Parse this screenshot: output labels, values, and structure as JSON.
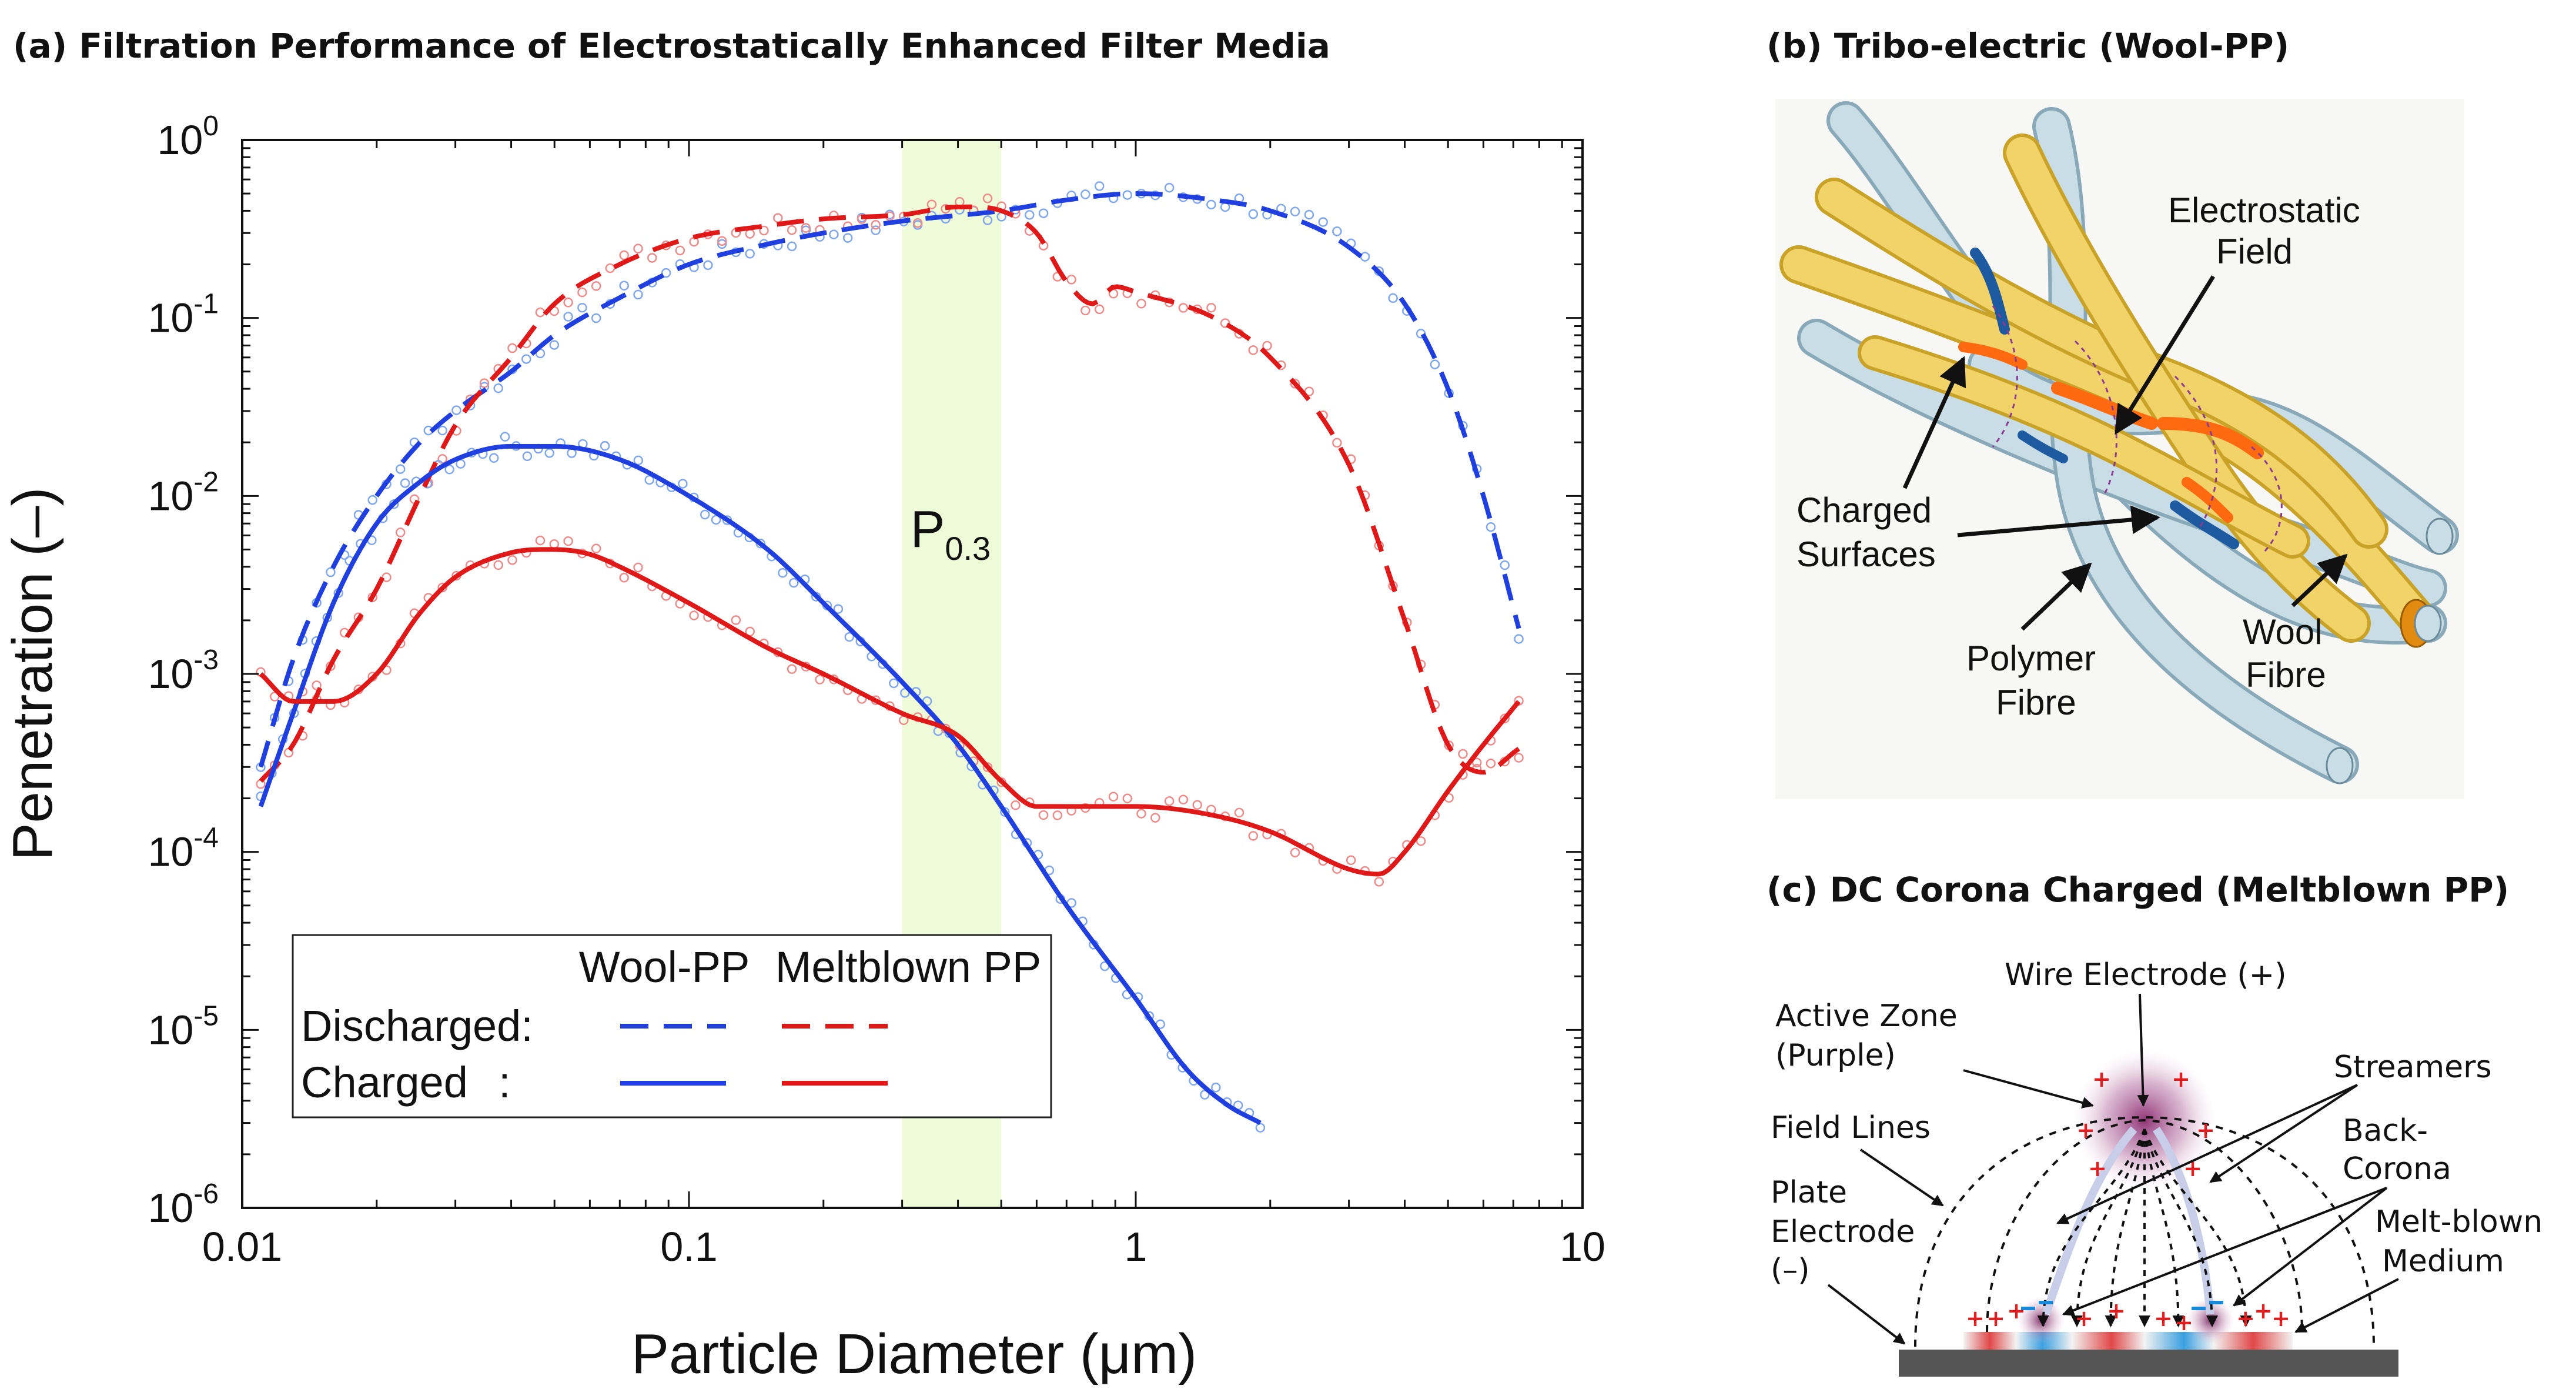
{
  "panels": {
    "a_title": "(a) Filtration Performance of Electrostatically Enhanced Filter Media",
    "b_title": "(b) Tribo-electric (Wool-PP)",
    "c_title": "(c) DC Corona Charged (Meltblown PP)"
  },
  "chart_data": {
    "type": "line",
    "title": "(a) Filtration Performance of Electrostatically Enhanced Filter Media",
    "xlabel": "Particle Diameter (μm)",
    "ylabel": "Penetration (–)",
    "xscale": "log",
    "yscale": "log",
    "xlim": [
      0.01,
      10
    ],
    "ylim": [
      1e-06,
      1
    ],
    "xticks": [
      "0.01",
      "0.1",
      "1",
      "10"
    ],
    "yticks": [
      {
        "base": "10",
        "exp": "-6"
      },
      {
        "base": "10",
        "exp": "-5"
      },
      {
        "base": "10",
        "exp": "-4"
      },
      {
        "base": "10",
        "exp": "-3"
      },
      {
        "base": "10",
        "exp": "-2"
      },
      {
        "base": "10",
        "exp": "-1"
      },
      {
        "base": "10",
        "exp": "0"
      }
    ],
    "band": {
      "x_from": 0.3,
      "x_to": 0.5,
      "label_main": "P",
      "label_sub": "0.3",
      "color": "#eefad8"
    },
    "legend": {
      "position": "bottom-left",
      "col_headers": [
        "Wool-PP",
        "Meltblown PP"
      ],
      "row_discharged": "Discharged:",
      "row_charged": "Charged",
      "row_charged_colon": ":"
    },
    "series": [
      {
        "key": "wool_discharged",
        "color": "#1f3fe0",
        "dash": true,
        "x": [
          0.011,
          0.013,
          0.016,
          0.02,
          0.025,
          0.03,
          0.04,
          0.05,
          0.07,
          0.1,
          0.15,
          0.2,
          0.3,
          0.5,
          0.7,
          1.0,
          1.5,
          2.0,
          3.0,
          4.0,
          5.0,
          6.0,
          7.2
        ],
        "y": [
          0.0003,
          0.0012,
          0.004,
          0.01,
          0.02,
          0.03,
          0.05,
          0.08,
          0.13,
          0.2,
          0.26,
          0.3,
          0.35,
          0.4,
          0.46,
          0.5,
          0.46,
          0.4,
          0.25,
          0.12,
          0.04,
          0.01,
          0.0018
        ]
      },
      {
        "key": "meltblown_discharged",
        "color": "#e01818",
        "dash": true,
        "x": [
          0.011,
          0.013,
          0.016,
          0.02,
          0.025,
          0.03,
          0.04,
          0.05,
          0.07,
          0.1,
          0.15,
          0.2,
          0.3,
          0.4,
          0.5,
          0.6,
          0.7,
          0.8,
          0.9,
          1.0,
          1.5,
          2.0,
          3.0,
          4.0,
          5.0,
          6.0,
          7.2
        ],
        "y": [
          0.00025,
          0.0004,
          0.0012,
          0.003,
          0.01,
          0.025,
          0.06,
          0.12,
          0.2,
          0.28,
          0.33,
          0.36,
          0.38,
          0.42,
          0.4,
          0.3,
          0.16,
          0.12,
          0.15,
          0.14,
          0.1,
          0.06,
          0.015,
          0.002,
          0.0004,
          0.00028,
          0.00038
        ]
      },
      {
        "key": "wool_charged",
        "color": "#1f3fe0",
        "dash": false,
        "x": [
          0.011,
          0.013,
          0.016,
          0.02,
          0.025,
          0.03,
          0.04,
          0.05,
          0.07,
          0.1,
          0.15,
          0.2,
          0.3,
          0.4,
          0.5,
          0.7,
          1.0,
          1.3,
          1.6,
          1.9
        ],
        "y": [
          0.00018,
          0.0006,
          0.0025,
          0.007,
          0.012,
          0.016,
          0.019,
          0.019,
          0.016,
          0.01,
          0.005,
          0.0025,
          0.0009,
          0.0004,
          0.00018,
          5e-05,
          1.5e-05,
          6e-06,
          3.8e-06,
          3e-06
        ]
      },
      {
        "key": "meltblown_charged",
        "color": "#e01818",
        "dash": false,
        "x": [
          0.011,
          0.013,
          0.016,
          0.02,
          0.025,
          0.03,
          0.04,
          0.05,
          0.06,
          0.07,
          0.1,
          0.15,
          0.2,
          0.3,
          0.4,
          0.5,
          0.6,
          0.7,
          1.0,
          1.5,
          2.0,
          3.0,
          3.5,
          4.0,
          5.0,
          6.0,
          7.2
        ],
        "y": [
          0.001,
          0.0007,
          0.0007,
          0.001,
          0.0022,
          0.0035,
          0.0048,
          0.005,
          0.0047,
          0.004,
          0.0025,
          0.0014,
          0.001,
          0.0006,
          0.00045,
          0.00025,
          0.00018,
          0.00018,
          0.00018,
          0.00016,
          0.00013,
          8e-05,
          7.5e-05,
          0.0001,
          0.00022,
          0.0004,
          0.0007
        ]
      }
    ]
  },
  "panel_b": {
    "labels": {
      "field_1": "Electrostatic",
      "field_2": "Field",
      "charged_1": "Charged",
      "charged_2": "Surfaces",
      "polymer_1": "Polymer",
      "polymer_2": "Fibre",
      "wool_1": "Wool",
      "wool_2": "Fibre"
    }
  },
  "panel_c": {
    "labels": {
      "wire": "Wire Electrode (+)",
      "active_1": "Active Zone",
      "active_2": "(Purple)",
      "streamers": "Streamers",
      "field_lines": "Field Lines",
      "back_1": "Back-",
      "back_2": "Corona",
      "plate_1": "Plate",
      "plate_2": "Electrode",
      "plate_3": "(–)",
      "melt_1": "Melt-blown",
      "melt_2": "Medium"
    }
  }
}
